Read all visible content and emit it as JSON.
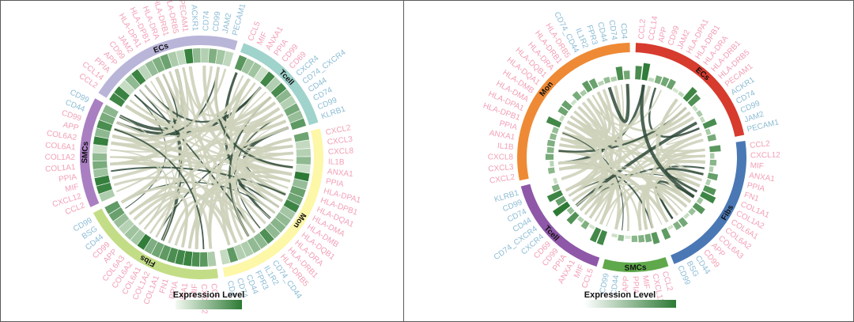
{
  "colors": {
    "ligand": "#f2a0b5",
    "receptor": "#8cbcd4",
    "ribbon": "#ced3bb",
    "ribbon_dark": "#2f4a3a",
    "heat_low": "#eef6e9",
    "heat_high": "#2d7a35"
  },
  "legend": {
    "title": "Expression Level"
  },
  "panels": [
    {
      "id": "left",
      "groups": [
        {
          "name": "ECs",
          "color": "#b9b5d9",
          "genes": [
            {
              "name": "CCL2",
              "type": "ligand"
            },
            {
              "name": "CCL14",
              "type": "ligand"
            },
            {
              "name": "PPIA",
              "type": "ligand"
            },
            {
              "name": "APP",
              "type": "ligand"
            },
            {
              "name": "CD99",
              "type": "ligand"
            },
            {
              "name": "JAM2",
              "type": "ligand"
            },
            {
              "name": "HLA-DPA1",
              "type": "ligand"
            },
            {
              "name": "HLA-DPB1",
              "type": "ligand"
            },
            {
              "name": "HLA-DRA",
              "type": "ligand"
            },
            {
              "name": "HLA-DRB1",
              "type": "ligand"
            },
            {
              "name": "HLA-DRB5",
              "type": "ligand"
            },
            {
              "name": "PECAM1",
              "type": "ligand"
            },
            {
              "name": "ACKR1",
              "type": "receptor"
            },
            {
              "name": "CD74",
              "type": "receptor"
            },
            {
              "name": "CD99",
              "type": "receptor"
            },
            {
              "name": "JAM2",
              "type": "receptor"
            },
            {
              "name": "PECAM1",
              "type": "receptor"
            }
          ]
        },
        {
          "name": "Tcell",
          "color": "#9fd3cc",
          "genes": [
            {
              "name": "CCL5",
              "type": "ligand"
            },
            {
              "name": "MIF",
              "type": "ligand"
            },
            {
              "name": "ANXA1",
              "type": "ligand"
            },
            {
              "name": "PPIA",
              "type": "ligand"
            },
            {
              "name": "CD99",
              "type": "ligand"
            },
            {
              "name": "CD69",
              "type": "ligand"
            },
            {
              "name": "CXCR4",
              "type": "receptor"
            },
            {
              "name": "CD74_CXCR4",
              "type": "receptor"
            },
            {
              "name": "CD44",
              "type": "receptor"
            },
            {
              "name": "CD74",
              "type": "receptor"
            },
            {
              "name": "CD99",
              "type": "receptor"
            },
            {
              "name": "KLRB1",
              "type": "receptor"
            }
          ]
        },
        {
          "name": "Mon",
          "color": "#fdf7a8",
          "genes": [
            {
              "name": "CXCL2",
              "type": "ligand"
            },
            {
              "name": "CXCL3",
              "type": "ligand"
            },
            {
              "name": "CXCL8",
              "type": "ligand"
            },
            {
              "name": "IL1B",
              "type": "ligand"
            },
            {
              "name": "ANXA1",
              "type": "ligand"
            },
            {
              "name": "PPIA",
              "type": "ligand"
            },
            {
              "name": "HLA-DPA1",
              "type": "ligand"
            },
            {
              "name": "HLA-DPB1",
              "type": "ligand"
            },
            {
              "name": "HLA-DQA1",
              "type": "ligand"
            },
            {
              "name": "HLA-DMA",
              "type": "ligand"
            },
            {
              "name": "HLA-DMB",
              "type": "ligand"
            },
            {
              "name": "HLA-DQB1",
              "type": "ligand"
            },
            {
              "name": "HLA-DRA",
              "type": "ligand"
            },
            {
              "name": "HLA-DRB1",
              "type": "ligand"
            },
            {
              "name": "HLA-DRB5",
              "type": "ligand"
            },
            {
              "name": "CD74_CD44",
              "type": "receptor"
            },
            {
              "name": "IL1R2",
              "type": "receptor"
            },
            {
              "name": "FPR3",
              "type": "receptor"
            },
            {
              "name": "CD44",
              "type": "receptor"
            },
            {
              "name": "CD74",
              "type": "receptor"
            },
            {
              "name": "CD4",
              "type": "receptor"
            }
          ]
        },
        {
          "name": "Fibs",
          "color": "#c3dd86",
          "genes": [
            {
              "name": "CCL2",
              "type": "ligand"
            },
            {
              "name": "CXCL12",
              "type": "ligand"
            },
            {
              "name": "MIF",
              "type": "ligand"
            },
            {
              "name": "ANXA1",
              "type": "ligand"
            },
            {
              "name": "PPIA",
              "type": "ligand"
            },
            {
              "name": "FN1",
              "type": "ligand"
            },
            {
              "name": "COL1A1",
              "type": "ligand"
            },
            {
              "name": "COL1A2",
              "type": "ligand"
            },
            {
              "name": "COL6A1",
              "type": "ligand"
            },
            {
              "name": "COL6A2",
              "type": "ligand"
            },
            {
              "name": "COL6A3",
              "type": "ligand"
            },
            {
              "name": "APP",
              "type": "ligand"
            },
            {
              "name": "CD99",
              "type": "ligand"
            },
            {
              "name": "CD44",
              "type": "receptor"
            },
            {
              "name": "BSG",
              "type": "receptor"
            },
            {
              "name": "CD99",
              "type": "receptor"
            }
          ]
        },
        {
          "name": "SMCs",
          "color": "#a97fc2",
          "genes": [
            {
              "name": "CCL2",
              "type": "ligand"
            },
            {
              "name": "CXCL12",
              "type": "ligand"
            },
            {
              "name": "MIF",
              "type": "ligand"
            },
            {
              "name": "PPIA",
              "type": "ligand"
            },
            {
              "name": "COL1A1",
              "type": "ligand"
            },
            {
              "name": "COL1A2",
              "type": "ligand"
            },
            {
              "name": "COL6A1",
              "type": "ligand"
            },
            {
              "name": "COL6A2",
              "type": "ligand"
            },
            {
              "name": "APP",
              "type": "ligand"
            },
            {
              "name": "CD99",
              "type": "ligand"
            },
            {
              "name": "CD44",
              "type": "receptor"
            },
            {
              "name": "CD99",
              "type": "receptor"
            }
          ]
        }
      ]
    },
    {
      "id": "right",
      "groups": [
        {
          "name": "ECs",
          "color": "#d63b2e",
          "genes": [
            {
              "name": "CCL2",
              "type": "ligand"
            },
            {
              "name": "CCL14",
              "type": "ligand"
            },
            {
              "name": "APP",
              "type": "ligand"
            },
            {
              "name": "CD99",
              "type": "ligand"
            },
            {
              "name": "JAM2",
              "type": "ligand"
            },
            {
              "name": "HLA-DPA1",
              "type": "ligand"
            },
            {
              "name": "HLA-DPB1",
              "type": "ligand"
            },
            {
              "name": "HLA-DRA",
              "type": "ligand"
            },
            {
              "name": "HLA-DRB1",
              "type": "ligand"
            },
            {
              "name": "HLA-DRB5",
              "type": "ligand"
            },
            {
              "name": "PECAM1",
              "type": "ligand"
            },
            {
              "name": "ACKR1",
              "type": "receptor"
            },
            {
              "name": "CD74",
              "type": "receptor"
            },
            {
              "name": "CD99",
              "type": "receptor"
            },
            {
              "name": "JAM2",
              "type": "receptor"
            },
            {
              "name": "PECAM1",
              "type": "receptor"
            }
          ]
        },
        {
          "name": "Fibs",
          "color": "#4a78b5",
          "genes": [
            {
              "name": "CCL2",
              "type": "ligand"
            },
            {
              "name": "CXCL12",
              "type": "ligand"
            },
            {
              "name": "MIF",
              "type": "ligand"
            },
            {
              "name": "ANXA1",
              "type": "ligand"
            },
            {
              "name": "PPIA",
              "type": "ligand"
            },
            {
              "name": "FN1",
              "type": "ligand"
            },
            {
              "name": "COL1A1",
              "type": "ligand"
            },
            {
              "name": "COL1A2",
              "type": "ligand"
            },
            {
              "name": "COL6A1",
              "type": "ligand"
            },
            {
              "name": "COL6A2",
              "type": "ligand"
            },
            {
              "name": "COL6A3",
              "type": "ligand"
            },
            {
              "name": "APP",
              "type": "ligand"
            },
            {
              "name": "CD99",
              "type": "ligand"
            },
            {
              "name": "CD44",
              "type": "receptor"
            },
            {
              "name": "BSG",
              "type": "receptor"
            },
            {
              "name": "CD99",
              "type": "receptor"
            }
          ]
        },
        {
          "name": "SMCs",
          "color": "#5fa84b",
          "genes": [
            {
              "name": "CCL2",
              "type": "ligand"
            },
            {
              "name": "CXCL12",
              "type": "ligand"
            },
            {
              "name": "MIF",
              "type": "ligand"
            },
            {
              "name": "PPIA",
              "type": "ligand"
            },
            {
              "name": "APP",
              "type": "ligand"
            },
            {
              "name": "CD44",
              "type": "receptor"
            },
            {
              "name": "CD99",
              "type": "receptor"
            }
          ]
        },
        {
          "name": "Tcell",
          "color": "#8e57a8",
          "genes": [
            {
              "name": "CCL5",
              "type": "ligand"
            },
            {
              "name": "MIF",
              "type": "ligand"
            },
            {
              "name": "ANXA1",
              "type": "ligand"
            },
            {
              "name": "PPIA",
              "type": "ligand"
            },
            {
              "name": "CD99",
              "type": "ligand"
            },
            {
              "name": "CD69",
              "type": "ligand"
            },
            {
              "name": "CXCR4",
              "type": "receptor"
            },
            {
              "name": "CD74_CXCR4",
              "type": "receptor"
            },
            {
              "name": "CD44",
              "type": "receptor"
            },
            {
              "name": "CD74",
              "type": "receptor"
            },
            {
              "name": "CD99",
              "type": "receptor"
            },
            {
              "name": "KLRB1",
              "type": "receptor"
            }
          ]
        },
        {
          "name": "Mon",
          "color": "#ee8a35",
          "genes": [
            {
              "name": "CXCL2",
              "type": "ligand"
            },
            {
              "name": "CXCL3",
              "type": "ligand"
            },
            {
              "name": "CXCL8",
              "type": "ligand"
            },
            {
              "name": "IL1B",
              "type": "ligand"
            },
            {
              "name": "ANXA1",
              "type": "ligand"
            },
            {
              "name": "PPIA",
              "type": "ligand"
            },
            {
              "name": "HLA-DPB1",
              "type": "ligand"
            },
            {
              "name": "HLA-DPA1",
              "type": "ligand"
            },
            {
              "name": "HLA-DMA",
              "type": "ligand"
            },
            {
              "name": "HLA-DMB",
              "type": "ligand"
            },
            {
              "name": "HLA-DQA1",
              "type": "ligand"
            },
            {
              "name": "HLA-DQB1",
              "type": "ligand"
            },
            {
              "name": "HLA-DRA",
              "type": "ligand"
            },
            {
              "name": "HLA-DRB1",
              "type": "ligand"
            },
            {
              "name": "HLA-DRB5",
              "type": "ligand"
            },
            {
              "name": "CD74_CD44",
              "type": "receptor"
            },
            {
              "name": "IL1R2",
              "type": "receptor"
            },
            {
              "name": "FPR3",
              "type": "receptor"
            },
            {
              "name": "CD44",
              "type": "receptor"
            },
            {
              "name": "CD74",
              "type": "receptor"
            },
            {
              "name": "CD4",
              "type": "receptor"
            }
          ]
        }
      ]
    }
  ]
}
